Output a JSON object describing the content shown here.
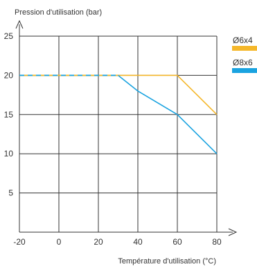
{
  "chart_data": {
    "type": "line",
    "xlabel": "Température d'utilisation (°C)",
    "ylabel": "Pression d'utilisation (bar)",
    "xlim": [
      -20,
      80
    ],
    "ylim": [
      0,
      25
    ],
    "x_ticks": [
      -20,
      0,
      20,
      40,
      60,
      80
    ],
    "y_ticks": [
      5,
      10,
      15,
      20,
      25
    ],
    "x_tick_labels": [
      "-20",
      "0",
      "20",
      "40",
      "60",
      "80"
    ],
    "y_tick_labels": [
      "5",
      "10",
      "15",
      "20",
      "25"
    ],
    "grid": true,
    "legend_position": "right",
    "series": [
      {
        "name": "Ø6x4",
        "color": "#f5b72a",
        "points": [
          [
            -20,
            20
          ],
          [
            60,
            20
          ],
          [
            80,
            15
          ]
        ]
      },
      {
        "name": "Ø8x6",
        "color": "#1aa3e0",
        "points": [
          [
            -20,
            20
          ],
          [
            30,
            20
          ],
          [
            40,
            18
          ],
          [
            60,
            15
          ],
          [
            80,
            10
          ]
        ]
      }
    ]
  }
}
